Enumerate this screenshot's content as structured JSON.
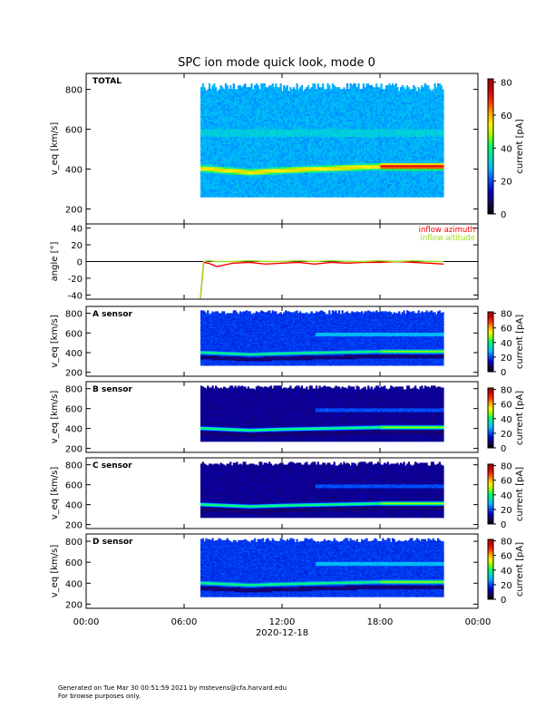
{
  "title": "SPC ion mode quick look, mode 0",
  "footer": {
    "line1": "Generated on Tue Mar 30 00:51:59 2021 by mstevens@cfa.harvard.edu",
    "line2": "For browse purposes only."
  },
  "colors": {
    "cbar": [
      "#000000",
      "#1a0060",
      "#0000c8",
      "#0050ff",
      "#00b4ff",
      "#00e0c0",
      "#00ff64",
      "#a0ff00",
      "#fff000",
      "#ffa000",
      "#ff3000",
      "#d00000",
      "#a00000"
    ],
    "azimuth": "#ff0000",
    "altitude": "#a0e020"
  },
  "chart_data": [
    {
      "type": "heatmap",
      "panel_label": "TOTAL",
      "ylabel": "v_eq [km/s]",
      "y_ticks": [
        200,
        400,
        600,
        800
      ],
      "ylim": [
        125,
        880
      ],
      "colorbar_label": "current [pA]",
      "colorbar_ticks": [
        0,
        20,
        40,
        60,
        80
      ],
      "colorbar_range": [
        0,
        82
      ],
      "data_start_hour": 7.0,
      "data_end_hour": 21.9,
      "beam_speed_kms": [
        400,
        380,
        390,
        400,
        410,
        410
      ],
      "beam_hours": [
        7,
        10,
        12,
        15,
        18,
        21.9
      ],
      "background": "panel"
    },
    {
      "type": "line",
      "ylabel": "angle [°]",
      "y_ticks": [
        -40,
        -20,
        0,
        20,
        40
      ],
      "ylim": [
        -45,
        45
      ],
      "series": [
        {
          "name": "inflow azimuth",
          "x": [
            7.0,
            7.2,
            7.5,
            8.0,
            9.0,
            10.0,
            11.0,
            12.0,
            13.0,
            14.0,
            15.0,
            16.0,
            17.0,
            18.0,
            19.0,
            20.0,
            21.0,
            21.9
          ],
          "values": [
            -44,
            -1,
            -2,
            -6,
            -2,
            -1,
            -3,
            -2,
            -1,
            -3,
            -1,
            -2,
            -1,
            -1,
            0,
            -1,
            -2,
            -3
          ]
        },
        {
          "name": "inflow altitude",
          "x": [
            7.0,
            7.2,
            7.5,
            8.0,
            9.0,
            10.0,
            11.0,
            12.0,
            13.0,
            14.0,
            15.0,
            16.0,
            17.0,
            18.0,
            19.0,
            20.0,
            21.0,
            21.9
          ],
          "values": [
            -44,
            0,
            1,
            0,
            0,
            1,
            0,
            0,
            1,
            0,
            1,
            0,
            0,
            1,
            0,
            1,
            0,
            0
          ]
        }
      ]
    },
    {
      "type": "heatmap",
      "panel_label": "A sensor",
      "ylabel": "v_eq [km/s]",
      "y_ticks": [
        200,
        400,
        600,
        800
      ],
      "ylim": [
        160,
        870
      ],
      "colorbar_label": "current [pA]",
      "colorbar_ticks": [
        0,
        20,
        40,
        60,
        80
      ],
      "colorbar_range": [
        0,
        82
      ],
      "data_start_hour": 7.0,
      "data_end_hour": 21.9
    },
    {
      "type": "heatmap",
      "panel_label": "B sensor",
      "ylabel": "v_eq [km/s]",
      "y_ticks": [
        200,
        400,
        600,
        800
      ],
      "ylim": [
        160,
        870
      ],
      "colorbar_label": "current [pA]",
      "colorbar_ticks": [
        0,
        20,
        40,
        60,
        80
      ],
      "colorbar_range": [
        0,
        82
      ],
      "data_start_hour": 7.0,
      "data_end_hour": 21.9
    },
    {
      "type": "heatmap",
      "panel_label": "C sensor",
      "ylabel": "v_eq [km/s]",
      "y_ticks": [
        200,
        400,
        600,
        800
      ],
      "ylim": [
        160,
        870
      ],
      "colorbar_label": "current [pA]",
      "colorbar_ticks": [
        0,
        20,
        40,
        60,
        80
      ],
      "colorbar_range": [
        0,
        82
      ],
      "data_start_hour": 7.0,
      "data_end_hour": 21.9
    },
    {
      "type": "heatmap",
      "panel_label": "D sensor",
      "ylabel": "v_eq [km/s]",
      "y_ticks": [
        200,
        400,
        600,
        800
      ],
      "ylim": [
        160,
        870
      ],
      "colorbar_label": "current [pA]",
      "colorbar_ticks": [
        0,
        20,
        40,
        60,
        80
      ],
      "colorbar_range": [
        0,
        82
      ],
      "data_start_hour": 7.0,
      "data_end_hour": 21.9
    }
  ],
  "x_axis": {
    "tick_labels": [
      "00:00",
      "06:00",
      "12:00",
      "18:00",
      "00:00"
    ],
    "tick_hours": [
      0,
      6,
      12,
      18,
      24
    ],
    "date_label": "2020-12-18",
    "xlim": [
      0,
      24
    ]
  }
}
